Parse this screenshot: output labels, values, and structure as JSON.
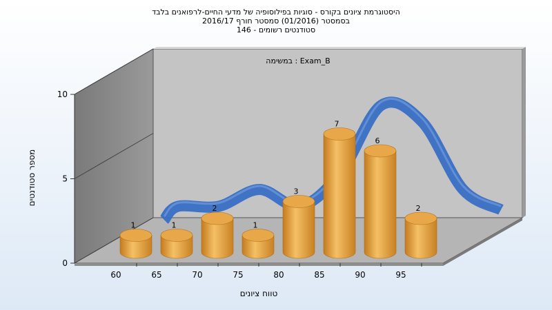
{
  "chart_data": {
    "type": "bar",
    "title_lines": [
      "היסטוגרמת ציונים בקורס - סוגיות בפילוסופיה של מדעי החיים-לרפואנים בלבד",
      "בסמסטר (01/2016) סמסטר חורף 2016/17",
      "סטודנטים רשומים - 146"
    ],
    "annotation": "במשימה : Exam_B",
    "xlabel": "טווח ציונים",
    "ylabel": "מספר סטודנטים",
    "categories": [
      "60",
      "65",
      "70",
      "75",
      "80",
      "85",
      "90",
      "95"
    ],
    "values": [
      1,
      1,
      2,
      1,
      3,
      7,
      6,
      2
    ],
    "yticks": [
      "0",
      "5",
      "10"
    ],
    "ylim": [
      0,
      10
    ],
    "grid": false,
    "legend": "none",
    "bar_color": "#e8a748",
    "curve_color": "#3a6fc4",
    "wall_color": "#c4c4c4",
    "side_wall_color": "#8a8a8a",
    "floor_color": "#b5b5b5"
  }
}
